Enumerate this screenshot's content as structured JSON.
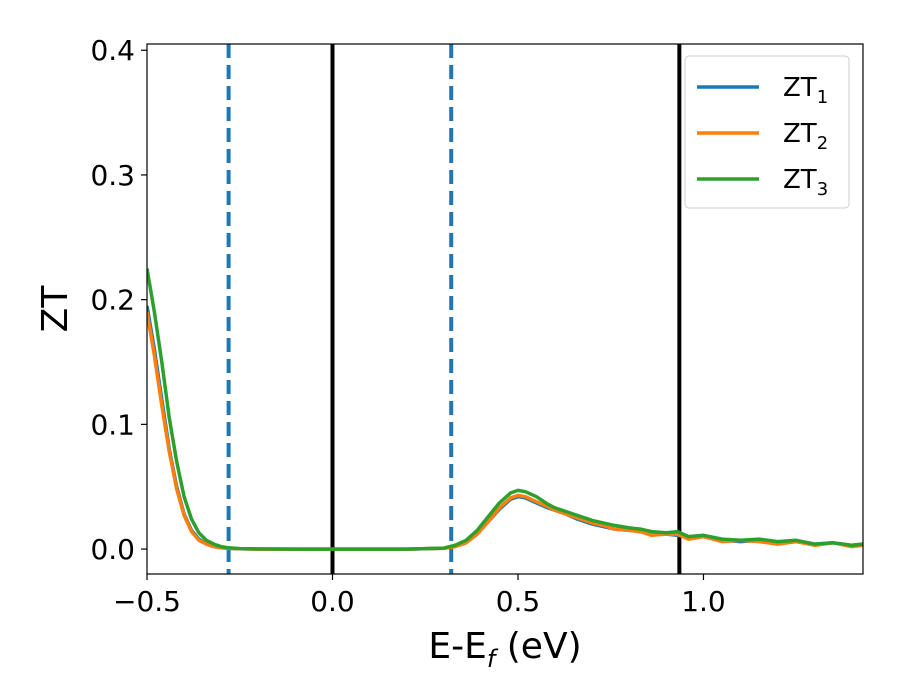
{
  "chart_data": {
    "type": "line",
    "title": "",
    "xlabel": {
      "main": "E-E",
      "sub": "f",
      "unit": " (eV)"
    },
    "ylabel": "ZT",
    "xlim": [
      -0.5,
      1.43
    ],
    "ylim": [
      -0.02,
      0.405
    ],
    "xticks": [
      {
        "value": -0.5,
        "label": "−0.5"
      },
      {
        "value": 0.0,
        "label": "0.0"
      },
      {
        "value": 0.5,
        "label": "0.5"
      },
      {
        "value": 1.0,
        "label": "1.0"
      }
    ],
    "yticks": [
      {
        "value": 0.0,
        "label": "0.0"
      },
      {
        "value": 0.1,
        "label": "0.1"
      },
      {
        "value": 0.2,
        "label": "0.2"
      },
      {
        "value": 0.3,
        "label": "0.3"
      },
      {
        "value": 0.4,
        "label": "0.4"
      }
    ],
    "grid": false,
    "legend_position": "top-right",
    "vertical_lines": [
      {
        "x": -0.28,
        "style": "dashed",
        "color": "#1f77b4"
      },
      {
        "x": 0.0,
        "style": "solid",
        "color": "#000000"
      },
      {
        "x": 0.32,
        "style": "dashed",
        "color": "#1f77b4"
      },
      {
        "x": 0.935,
        "style": "solid",
        "color": "#000000"
      }
    ],
    "series": [
      {
        "name": "ZT",
        "sub": "1",
        "color": "#1f77b4",
        "x": [
          -0.5,
          -0.48,
          -0.46,
          -0.44,
          -0.42,
          -0.4,
          -0.38,
          -0.36,
          -0.34,
          -0.32,
          -0.3,
          -0.28,
          -0.25,
          -0.2,
          -0.1,
          0.0,
          0.1,
          0.2,
          0.3,
          0.33,
          0.36,
          0.39,
          0.42,
          0.45,
          0.48,
          0.5,
          0.52,
          0.55,
          0.58,
          0.6,
          0.63,
          0.66,
          0.7,
          0.73,
          0.76,
          0.8,
          0.83,
          0.86,
          0.9,
          0.93,
          0.96,
          1.0,
          1.05,
          1.1,
          1.15,
          1.2,
          1.25,
          1.3,
          1.35,
          1.4,
          1.43
        ],
        "y": [
          0.195,
          0.16,
          0.12,
          0.08,
          0.05,
          0.028,
          0.015,
          0.008,
          0.004,
          0.002,
          0.001,
          0.0005,
          0.0002,
          0.0,
          0.0,
          0.0,
          0.0,
          0.0,
          0.0006,
          0.002,
          0.005,
          0.012,
          0.022,
          0.032,
          0.04,
          0.042,
          0.041,
          0.037,
          0.033,
          0.031,
          0.028,
          0.024,
          0.02,
          0.018,
          0.016,
          0.015,
          0.014,
          0.012,
          0.012,
          0.011,
          0.009,
          0.01,
          0.007,
          0.006,
          0.007,
          0.005,
          0.006,
          0.004,
          0.005,
          0.003,
          0.004
        ]
      },
      {
        "name": "ZT",
        "sub": "2",
        "color": "#ff7f0e",
        "x": [
          -0.5,
          -0.48,
          -0.46,
          -0.44,
          -0.42,
          -0.4,
          -0.38,
          -0.36,
          -0.34,
          -0.32,
          -0.3,
          -0.28,
          -0.25,
          -0.2,
          -0.1,
          0.0,
          0.1,
          0.2,
          0.3,
          0.33,
          0.36,
          0.39,
          0.42,
          0.45,
          0.48,
          0.5,
          0.52,
          0.55,
          0.58,
          0.6,
          0.63,
          0.66,
          0.7,
          0.73,
          0.76,
          0.8,
          0.83,
          0.86,
          0.9,
          0.93,
          0.96,
          1.0,
          1.05,
          1.1,
          1.15,
          1.2,
          1.25,
          1.3,
          1.35,
          1.4,
          1.43
        ],
        "y": [
          0.19,
          0.155,
          0.115,
          0.078,
          0.048,
          0.027,
          0.014,
          0.007,
          0.004,
          0.002,
          0.001,
          0.0005,
          0.0002,
          0.0,
          0.0,
          0.0,
          0.0,
          0.0,
          0.0006,
          0.002,
          0.005,
          0.012,
          0.022,
          0.033,
          0.041,
          0.043,
          0.042,
          0.038,
          0.034,
          0.031,
          0.028,
          0.025,
          0.021,
          0.019,
          0.016,
          0.015,
          0.014,
          0.011,
          0.012,
          0.012,
          0.008,
          0.01,
          0.006,
          0.007,
          0.006,
          0.004,
          0.006,
          0.003,
          0.005,
          0.002,
          0.003
        ]
      },
      {
        "name": "ZT",
        "sub": "3",
        "color": "#2ca02c",
        "x": [
          -0.5,
          -0.48,
          -0.46,
          -0.44,
          -0.42,
          -0.4,
          -0.38,
          -0.36,
          -0.34,
          -0.32,
          -0.3,
          -0.28,
          -0.25,
          -0.2,
          -0.1,
          0.0,
          0.1,
          0.2,
          0.3,
          0.33,
          0.36,
          0.39,
          0.42,
          0.45,
          0.48,
          0.5,
          0.52,
          0.55,
          0.58,
          0.6,
          0.63,
          0.66,
          0.7,
          0.73,
          0.76,
          0.8,
          0.83,
          0.86,
          0.9,
          0.93,
          0.96,
          1.0,
          1.05,
          1.1,
          1.15,
          1.2,
          1.25,
          1.3,
          1.35,
          1.4,
          1.43
        ],
        "y": [
          0.225,
          0.19,
          0.15,
          0.105,
          0.07,
          0.042,
          0.024,
          0.013,
          0.007,
          0.004,
          0.002,
          0.001,
          0.0004,
          0.0001,
          0.0,
          0.0,
          0.0,
          0.0,
          0.0008,
          0.003,
          0.007,
          0.015,
          0.026,
          0.037,
          0.045,
          0.047,
          0.046,
          0.042,
          0.036,
          0.033,
          0.03,
          0.027,
          0.023,
          0.021,
          0.019,
          0.017,
          0.016,
          0.014,
          0.013,
          0.014,
          0.01,
          0.011,
          0.008,
          0.007,
          0.008,
          0.006,
          0.007,
          0.004,
          0.005,
          0.003,
          0.004
        ]
      }
    ]
  }
}
